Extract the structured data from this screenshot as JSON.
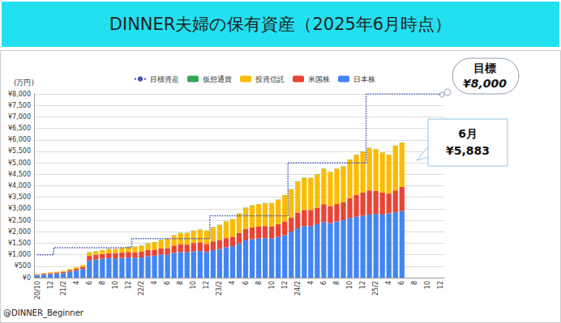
{
  "chart_data": {
    "type": "bar",
    "title": "DINNER夫婦の保有資産（2025年6月時点）",
    "y_label": "(万円)",
    "credit": "@DINNER_Beginner",
    "annotations": [
      {
        "text": "目標",
        "label": "¥8,000",
        "value": 8000
      },
      {
        "text": "6月",
        "label": "¥5,883",
        "value": 5883
      }
    ],
    "stacked": true,
    "grid": true,
    "legend": "top",
    "categories": [
      "20/10",
      null,
      "12",
      null,
      "21/2",
      null,
      "4",
      null,
      "6",
      null,
      "8",
      null,
      "10",
      null,
      "12",
      null,
      "22/2",
      null,
      "4",
      null,
      "6",
      null,
      "8",
      null,
      "10",
      null,
      "12",
      null,
      "23/2",
      null,
      "4",
      null,
      "6",
      null,
      "8",
      null,
      "10",
      null,
      "12",
      null,
      "24/2",
      null,
      "4",
      null,
      "6",
      null,
      "8",
      null,
      "10",
      null,
      "12",
      null,
      "25/2",
      null,
      "4",
      null,
      "6",
      null,
      "8",
      null,
      "10",
      null,
      "12"
    ],
    "series": [
      {
        "name": "目標資産",
        "type": "line",
        "line_style": "dotted",
        "color": "#3f51b5",
        "values": [
          1000,
          1000,
          1000,
          1300,
          1300,
          1300,
          1300,
          1300,
          1300,
          1300,
          1300,
          1300,
          1300,
          1300,
          1300,
          1700,
          1700,
          1700,
          1700,
          1700,
          1700,
          1700,
          1700,
          1700,
          1700,
          1700,
          1700,
          2700,
          2700,
          2700,
          2700,
          2700,
          2700,
          2700,
          2700,
          2700,
          2700,
          2700,
          2700,
          5000,
          5000,
          5000,
          5000,
          5000,
          5000,
          5000,
          5000,
          5000,
          5000,
          5000,
          5000,
          8000,
          8000,
          8000,
          8000,
          8000,
          8000,
          8000,
          8000,
          8000,
          8000,
          8000,
          8000
        ]
      },
      {
        "name": "仮想通貨",
        "type": "bar",
        "color": "#34a853",
        "values": [
          0,
          0,
          0,
          0,
          0,
          0,
          0,
          0,
          10,
          10,
          10,
          10,
          10,
          10,
          10,
          10,
          10,
          10,
          10,
          10,
          10,
          10,
          10,
          10,
          10,
          10,
          10,
          10,
          10,
          10,
          10,
          10,
          10,
          10,
          10,
          10,
          10,
          10,
          10,
          10,
          10,
          10,
          10,
          10,
          10,
          10,
          10,
          10,
          10,
          10,
          10,
          10,
          10,
          10,
          10,
          10,
          10,
          null,
          null,
          null,
          null,
          null,
          null
        ]
      },
      {
        "name": "投資信託",
        "type": "bar",
        "color": "#fbbc04",
        "values": [
          20,
          30,
          35,
          40,
          45,
          55,
          65,
          80,
          150,
          150,
          160,
          170,
          180,
          200,
          220,
          240,
          260,
          290,
          320,
          360,
          400,
          440,
          480,
          500,
          530,
          550,
          570,
          610,
          650,
          720,
          760,
          840,
          920,
          950,
          970,
          990,
          1020,
          1060,
          1140,
          1220,
          1360,
          1390,
          1390,
          1440,
          1540,
          1470,
          1530,
          1560,
          1680,
          1740,
          1790,
          1840,
          1810,
          1740,
          1680,
          1940,
          1923,
          null,
          null,
          null,
          null,
          null,
          null
        ]
      },
      {
        "name": "米国株",
        "type": "bar",
        "color": "#ea4335",
        "values": [
          30,
          40,
          45,
          50,
          55,
          65,
          75,
          90,
          200,
          200,
          210,
          220,
          220,
          230,
          240,
          240,
          250,
          260,
          260,
          280,
          290,
          320,
          340,
          340,
          360,
          370,
          350,
          380,
          390,
          400,
          410,
          450,
          500,
          510,
          520,
          530,
          520,
          550,
          600,
          620,
          680,
          700,
          700,
          720,
          780,
          740,
          760,
          780,
          860,
          950,
          1000,
          1050,
          1000,
          950,
          860,
          950,
          1050,
          null,
          null,
          null,
          null,
          null,
          null
        ]
      },
      {
        "name": "日本株",
        "type": "bar",
        "color": "#4285f4",
        "values": [
          100,
          130,
          150,
          170,
          200,
          260,
          310,
          380,
          750,
          790,
          820,
          850,
          840,
          860,
          880,
          860,
          880,
          940,
          960,
          1000,
          1000,
          1080,
          1120,
          1100,
          1150,
          1170,
          1120,
          1200,
          1250,
          1320,
          1370,
          1500,
          1620,
          1680,
          1700,
          1720,
          1700,
          1780,
          1850,
          2000,
          2150,
          2250,
          2250,
          2330,
          2420,
          2380,
          2450,
          2500,
          2600,
          2650,
          2700,
          2750,
          2780,
          2750,
          2800,
          2850,
          2900,
          null,
          null,
          null,
          null,
          null,
          null
        ]
      }
    ],
    "ylim": [
      0,
      8000
    ],
    "yticks": [
      {
        "value": 0,
        "label": "¥0"
      },
      {
        "value": 500,
        "label": "¥500"
      },
      {
        "value": 1000,
        "label": "¥1,000"
      },
      {
        "value": 1500,
        "label": "¥1,500"
      },
      {
        "value": 2000,
        "label": "¥2,000"
      },
      {
        "value": 2500,
        "label": "¥2,500"
      },
      {
        "value": 3000,
        "label": "¥3,000"
      },
      {
        "value": 3500,
        "label": "¥3,500"
      },
      {
        "value": 4000,
        "label": "¥4,000"
      },
      {
        "value": 4500,
        "label": "¥4,500"
      },
      {
        "value": 5000,
        "label": "¥5,000"
      },
      {
        "value": 5500,
        "label": "¥5,500"
      },
      {
        "value": 6000,
        "label": "¥6,000"
      },
      {
        "value": 6500,
        "label": "¥6,500"
      },
      {
        "value": 7000,
        "label": "¥7,000"
      },
      {
        "value": 7500,
        "label": "¥7,500"
      },
      {
        "value": 8000,
        "label": "¥8,000"
      }
    ]
  }
}
